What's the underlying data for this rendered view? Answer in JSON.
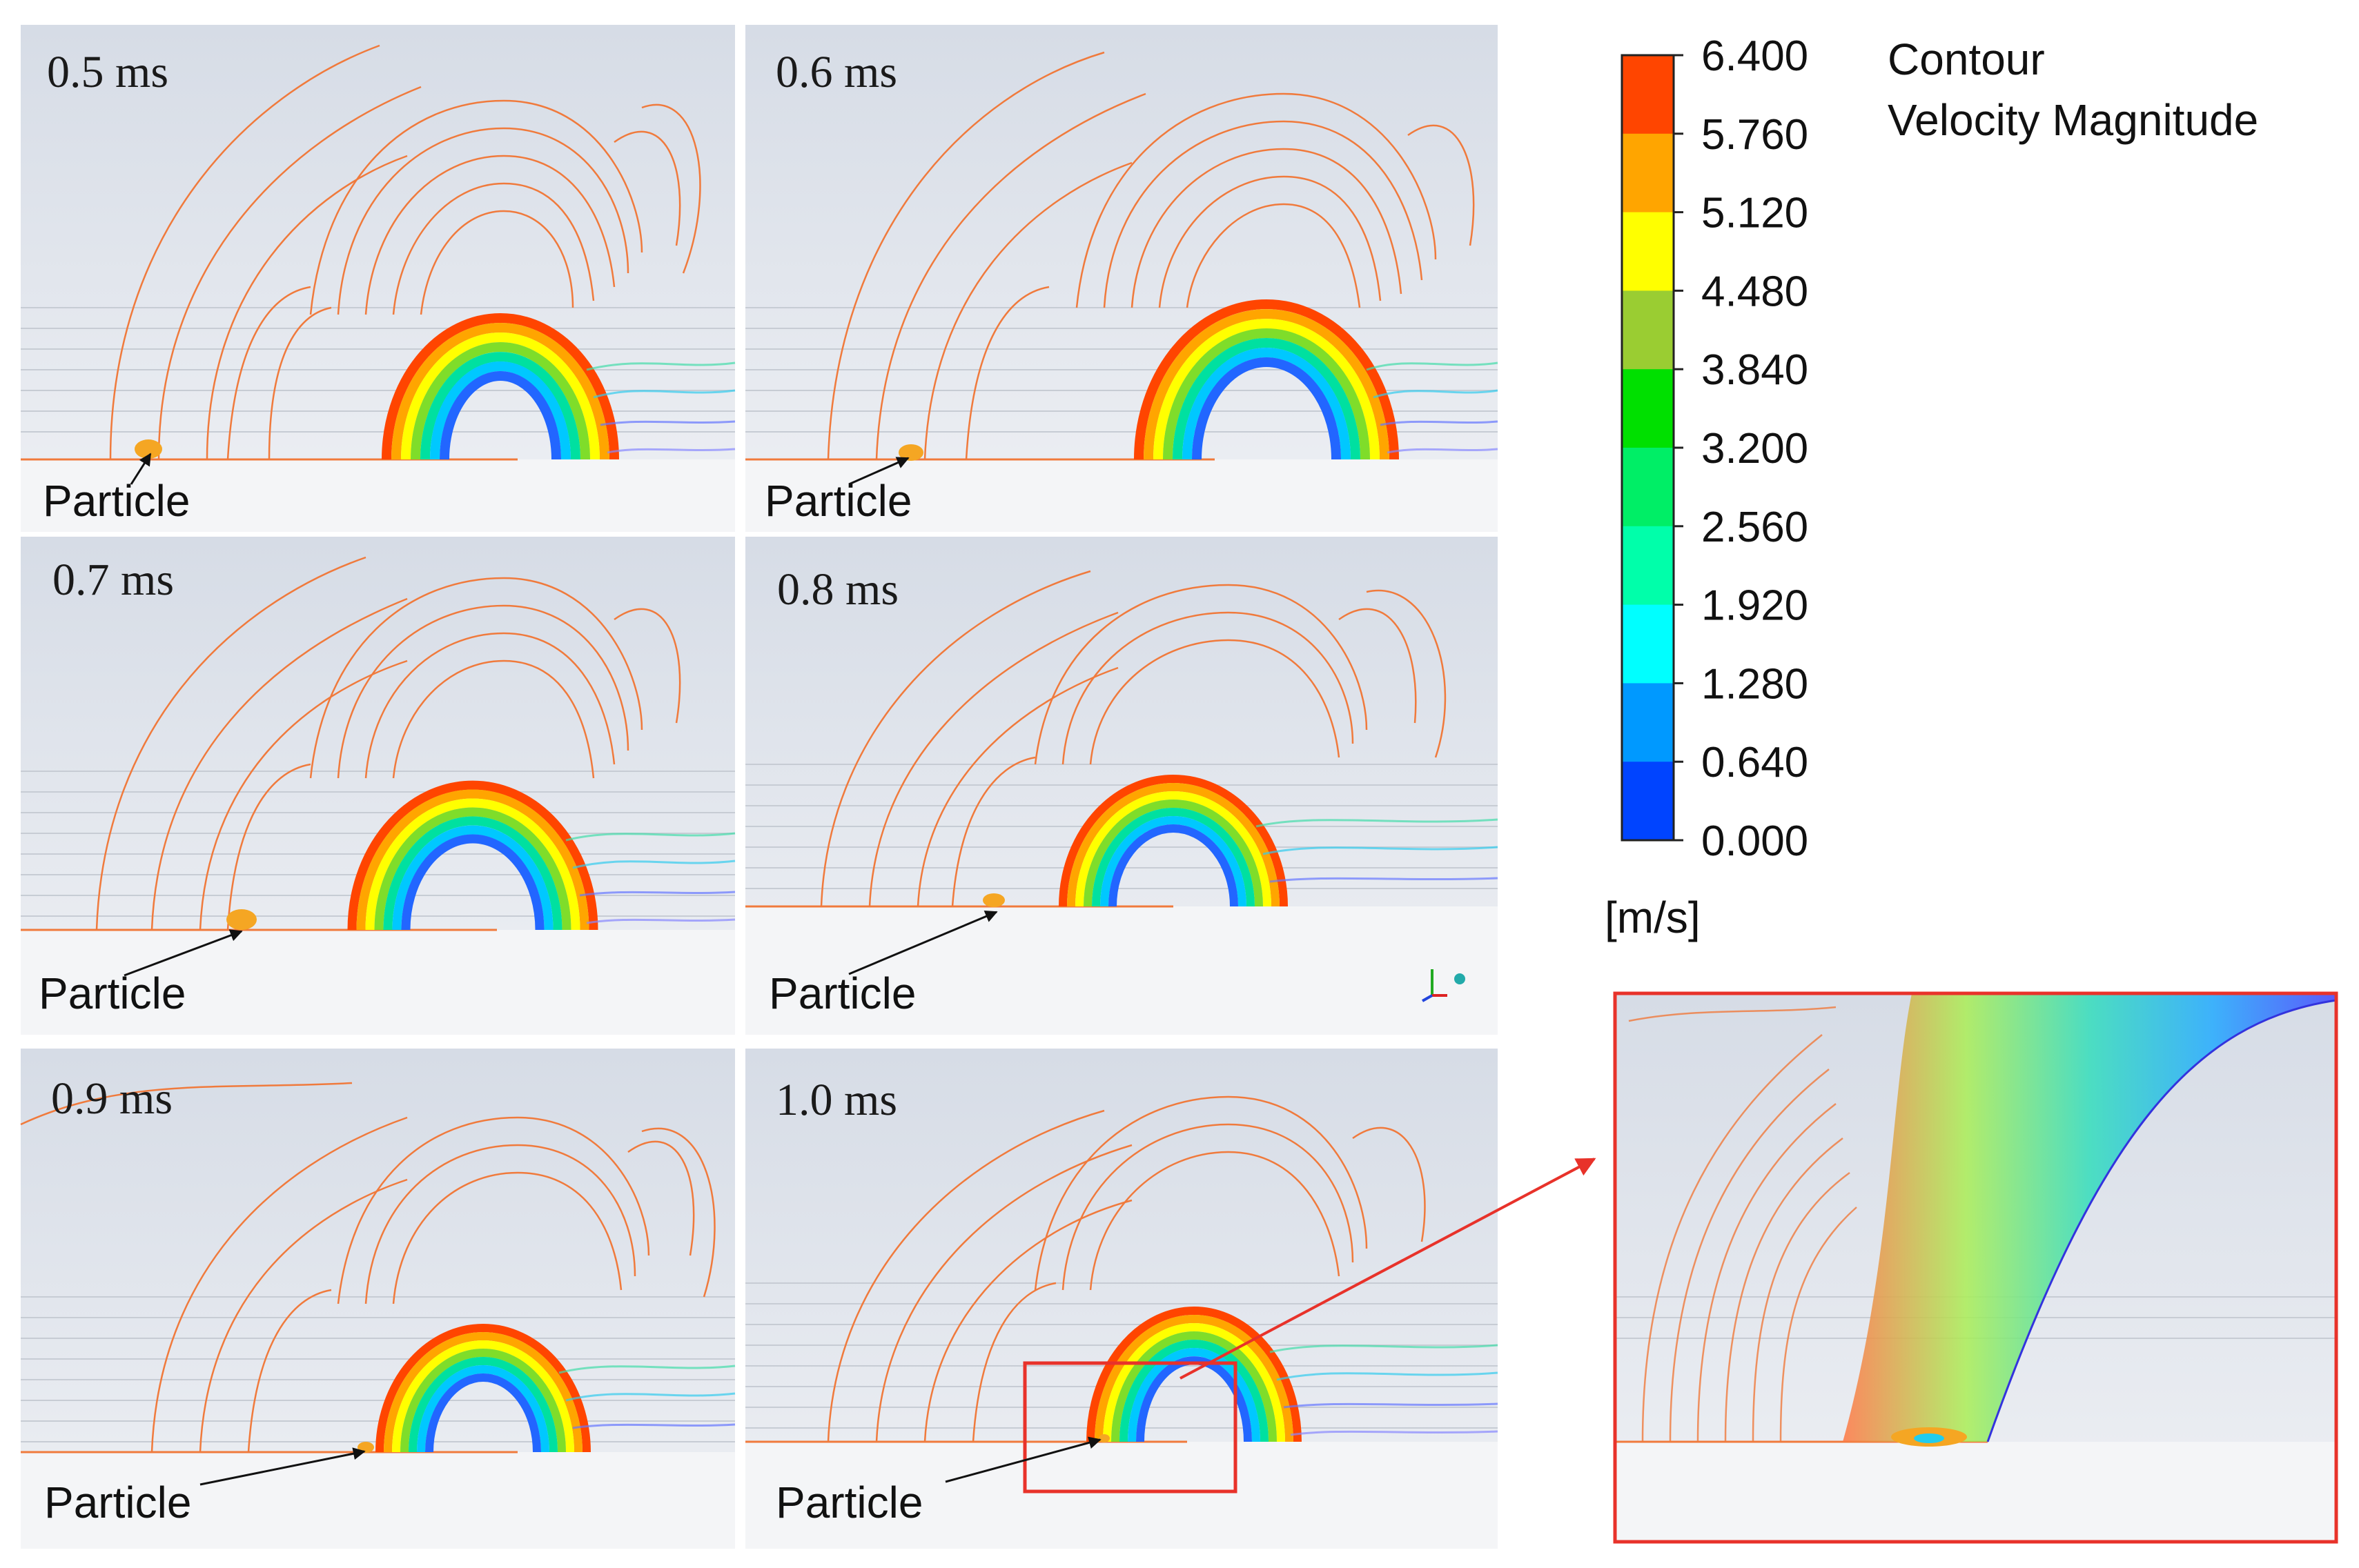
{
  "panels": [
    {
      "time": "0.5 ms",
      "particle_label": "Particle"
    },
    {
      "time": "0.6 ms",
      "particle_label": "Particle"
    },
    {
      "time": "0.7 ms",
      "particle_label": "Particle"
    },
    {
      "time": "0.8 ms",
      "particle_label": "Particle"
    },
    {
      "time": "0.9 ms",
      "particle_label": "Particle"
    },
    {
      "time": "1.0 ms",
      "particle_label": "Particle"
    }
  ],
  "legend": {
    "title_line1": "Contour",
    "title_line2": "Velocity Magnitude",
    "unit": "[m/s]",
    "ticks": [
      "6.400",
      "5.760",
      "5.120",
      "4.480",
      "3.840",
      "3.200",
      "2.560",
      "1.920",
      "1.280",
      "0.640",
      "0.000"
    ],
    "bands": [
      "#ff4500",
      "#ffa500",
      "#ffff00",
      "#9acd32",
      "#00e000",
      "#00ee66",
      "#00ffaa",
      "#00ffff",
      "#0099ff",
      "#0044ff"
    ]
  },
  "colors": {
    "panel_bg": "#dde2ea",
    "floor": "#f4f5f7",
    "contour_orange": "#f07a3c",
    "highlight_box": "#e8322a"
  }
}
